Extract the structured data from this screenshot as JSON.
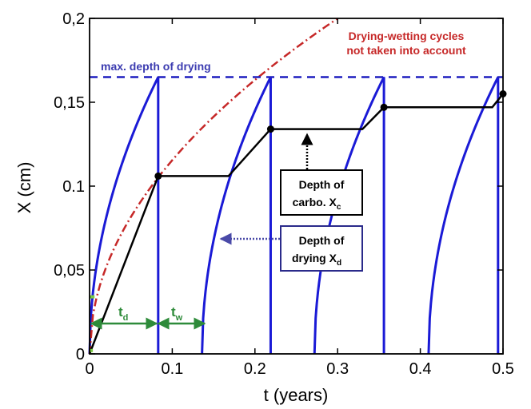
{
  "chart_data": {
    "type": "line",
    "xlabel": "t (years)",
    "ylabel": "X (cm)",
    "xlim": [
      0,
      0.5
    ],
    "ylim": [
      0,
      0.2
    ],
    "x_ticks": [
      "0",
      "0.1",
      "0.2",
      "0.3",
      "0.4",
      "0.5"
    ],
    "y_ticks": [
      "0",
      "0,05",
      "0.1",
      "0,15",
      "0,2"
    ],
    "grid": false,
    "max_depth": {
      "label": "max. depth of drying",
      "y": 0.165,
      "color": "#1f1fbf"
    },
    "no_cycles_curve": {
      "label_line1": "Drying-wetting cycles",
      "label_line2": "not taken into account",
      "k": 0.3651,
      "color": "#c62828"
    },
    "drying_cycles": {
      "color": "#1a1ad6",
      "cycles": [
        {
          "start": 0.0,
          "end": 0.083
        },
        {
          "start": 0.136,
          "end": 0.219
        },
        {
          "start": 0.272,
          "end": 0.356
        },
        {
          "start": 0.41,
          "end": 0.494
        }
      ],
      "max_depth_at_end": 0.165
    },
    "carbonation_depth": {
      "color": "#000000",
      "x": [
        0.0,
        0.083,
        0.168,
        0.219,
        0.33,
        0.356,
        0.487,
        0.5
      ],
      "y": [
        0.0,
        0.106,
        0.106,
        0.134,
        0.134,
        0.147,
        0.147,
        0.155
      ],
      "markers": [
        {
          "x": 0.083,
          "y": 0.106
        },
        {
          "x": 0.219,
          "y": 0.134
        },
        {
          "x": 0.356,
          "y": 0.147
        },
        {
          "x": 0.5,
          "y": 0.155
        }
      ]
    },
    "annotations": {
      "carbo_box": {
        "line1": "Depth of",
        "line2": "carbo. X",
        "sub": "c"
      },
      "drying_box": {
        "line1": "Depth of",
        "line2": "drying X",
        "sub": "d"
      },
      "td": {
        "main": "t",
        "sub": "d"
      },
      "tw": {
        "main": "t",
        "sub": "w"
      }
    }
  }
}
